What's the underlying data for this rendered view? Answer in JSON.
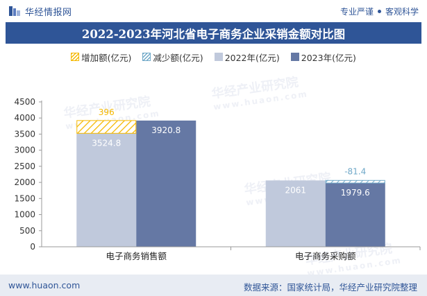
{
  "header": {
    "brand": "华经情报网",
    "slogan_left": "专业严谨",
    "slogan_right": "客观科学"
  },
  "title": "2022-2023年河北省电子商务企业采销金额对比图",
  "legend": [
    {
      "label": "增加额(亿元)",
      "color": "#f5b800"
    },
    {
      "label": "减少额(亿元)",
      "color": "#6fa8c8"
    },
    {
      "label": "2022年(亿元)",
      "color": "#c0c9dc"
    },
    {
      "label": "2023年(亿元)",
      "color": "#6578a4"
    }
  ],
  "watermark": {
    "text": "华经产业研究院",
    "url": "www.huaon.com"
  },
  "chart_data": {
    "type": "bar",
    "categories": [
      "电子商务销售额",
      "电子商务采购额"
    ],
    "series": [
      {
        "name": "2022年(亿元)",
        "values": [
          3524.8,
          2061
        ],
        "color": "#c0c9dc"
      },
      {
        "name": "2023年(亿元)",
        "values": [
          3920.8,
          1979.6
        ],
        "color": "#6578a4"
      }
    ],
    "changes": [
      {
        "category": "电子商务销售额",
        "label": "396",
        "value": 396,
        "kind": "增加额(亿元)",
        "color": "#f5b800"
      },
      {
        "category": "电子商务采购额",
        "label": "-81.4",
        "value": -81.4,
        "kind": "减少额(亿元)",
        "color": "#6fa8c8"
      }
    ],
    "ylim": [
      0,
      4500
    ],
    "yticks": [
      0,
      500,
      1000,
      1500,
      2000,
      2500,
      3000,
      3500,
      4000,
      4500
    ],
    "grid": false,
    "legend_position": "top"
  },
  "footer": {
    "left": "www.huaon.com",
    "right": "数据来源：国家统计局，华经产业研究院整理"
  }
}
